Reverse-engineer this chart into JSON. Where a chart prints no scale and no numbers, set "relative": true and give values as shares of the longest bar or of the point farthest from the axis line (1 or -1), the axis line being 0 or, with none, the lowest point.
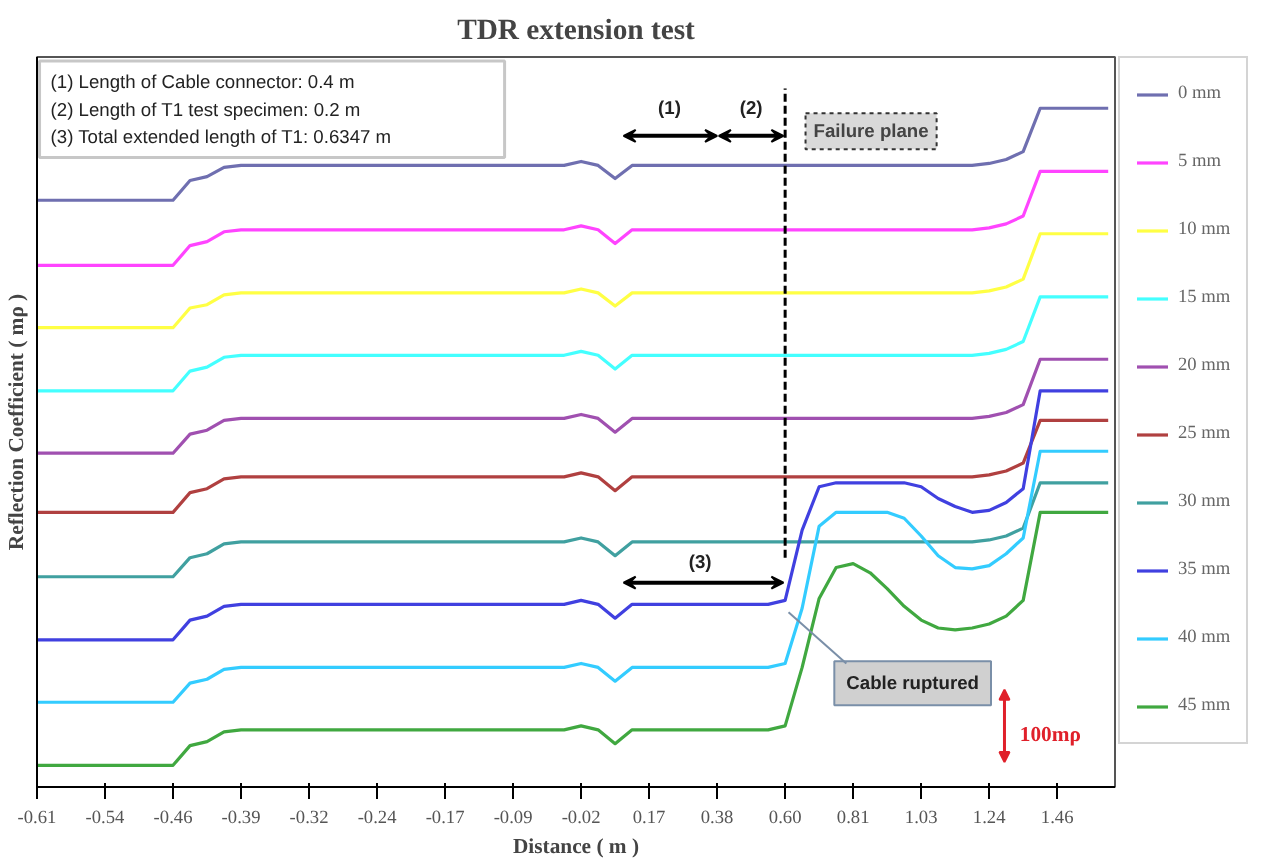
{
  "chart_data": {
    "type": "line",
    "title": "TDR extension test",
    "xlabel": "Distance ( m )",
    "ylabel": "Reflection Coefficient ( mρ )",
    "relative": true,
    "legend": "right",
    "categories": [
      "-0.61",
      null,
      null,
      null,
      "-0.54",
      null,
      null,
      null,
      "-0.46",
      null,
      null,
      null,
      "-0.39",
      null,
      null,
      null,
      "-0.32",
      null,
      null,
      null,
      "-0.24",
      null,
      null,
      null,
      "-0.17",
      null,
      null,
      null,
      "-0.09",
      null,
      null,
      null,
      "-0.02",
      null,
      null,
      null,
      "0.17",
      null,
      null,
      null,
      "0.38",
      null,
      null,
      null,
      "0.60",
      null,
      null,
      null,
      "0.81",
      null,
      null,
      null,
      "1.03",
      null,
      null,
      null,
      "1.24",
      null,
      null,
      null,
      "1.46",
      null,
      null,
      null
    ],
    "series": [
      {
        "name": "0 mm",
        "color": "#6f6fb0",
        "values": [
          0.86,
          0.86,
          0.86,
          0.86,
          0.86,
          0.86,
          0.86,
          0.86,
          0.86,
          0.89,
          0.896,
          0.91,
          0.913,
          0.913,
          0.913,
          0.913,
          0.913,
          0.913,
          0.913,
          0.913,
          0.913,
          0.913,
          0.913,
          0.913,
          0.913,
          0.913,
          0.913,
          0.913,
          0.913,
          0.913,
          0.913,
          0.913,
          0.919,
          0.913,
          0.893,
          0.913,
          0.913,
          0.913,
          0.913,
          0.913,
          0.913,
          0.913,
          0.913,
          0.913,
          0.913,
          0.913,
          0.913,
          0.913,
          0.913,
          0.913,
          0.913,
          0.913,
          0.913,
          0.913,
          0.913,
          0.913,
          0.916,
          0.922,
          0.934,
          1,
          1,
          1,
          1,
          1
        ]
      },
      {
        "name": "5 mm",
        "color": "#ff44ff",
        "values": [
          0.761,
          0.761,
          0.761,
          0.761,
          0.761,
          0.761,
          0.761,
          0.761,
          0.761,
          0.791,
          0.797,
          0.812,
          0.815,
          0.815,
          0.815,
          0.815,
          0.815,
          0.815,
          0.815,
          0.815,
          0.815,
          0.815,
          0.815,
          0.815,
          0.815,
          0.815,
          0.815,
          0.815,
          0.815,
          0.815,
          0.815,
          0.815,
          0.821,
          0.815,
          0.794,
          0.815,
          0.815,
          0.815,
          0.815,
          0.815,
          0.815,
          0.815,
          0.815,
          0.815,
          0.815,
          0.815,
          0.815,
          0.815,
          0.815,
          0.815,
          0.815,
          0.815,
          0.815,
          0.815,
          0.815,
          0.815,
          0.818,
          0.824,
          0.836,
          0.904,
          0.904,
          0.904,
          0.904,
          0.904
        ]
      },
      {
        "name": "10 mm",
        "color": "#ffff44",
        "values": [
          0.666,
          0.666,
          0.666,
          0.666,
          0.666,
          0.666,
          0.666,
          0.666,
          0.666,
          0.696,
          0.701,
          0.716,
          0.719,
          0.719,
          0.719,
          0.719,
          0.719,
          0.719,
          0.719,
          0.719,
          0.719,
          0.719,
          0.719,
          0.719,
          0.719,
          0.719,
          0.719,
          0.719,
          0.719,
          0.719,
          0.719,
          0.719,
          0.725,
          0.719,
          0.699,
          0.719,
          0.719,
          0.719,
          0.719,
          0.719,
          0.719,
          0.719,
          0.719,
          0.719,
          0.719,
          0.719,
          0.719,
          0.719,
          0.719,
          0.719,
          0.719,
          0.719,
          0.719,
          0.719,
          0.719,
          0.719,
          0.722,
          0.728,
          0.74,
          0.809,
          0.809,
          0.809,
          0.809,
          0.809
        ]
      },
      {
        "name": "15 mm",
        "color": "#44ffff",
        "values": [
          0.57,
          0.57,
          0.57,
          0.57,
          0.57,
          0.57,
          0.57,
          0.57,
          0.57,
          0.6,
          0.606,
          0.621,
          0.624,
          0.624,
          0.624,
          0.624,
          0.624,
          0.624,
          0.624,
          0.624,
          0.624,
          0.624,
          0.624,
          0.624,
          0.624,
          0.624,
          0.624,
          0.624,
          0.624,
          0.624,
          0.624,
          0.624,
          0.63,
          0.624,
          0.603,
          0.624,
          0.624,
          0.624,
          0.624,
          0.624,
          0.624,
          0.624,
          0.624,
          0.624,
          0.624,
          0.624,
          0.624,
          0.624,
          0.624,
          0.624,
          0.624,
          0.624,
          0.624,
          0.624,
          0.624,
          0.624,
          0.627,
          0.633,
          0.645,
          0.713,
          0.713,
          0.713,
          0.713,
          0.713
        ]
      },
      {
        "name": "20 mm",
        "color": "#a050b0",
        "values": [
          0.475,
          0.475,
          0.475,
          0.475,
          0.475,
          0.475,
          0.475,
          0.475,
          0.475,
          0.504,
          0.51,
          0.525,
          0.528,
          0.528,
          0.528,
          0.528,
          0.528,
          0.528,
          0.528,
          0.528,
          0.528,
          0.528,
          0.528,
          0.528,
          0.528,
          0.528,
          0.528,
          0.528,
          0.528,
          0.528,
          0.528,
          0.528,
          0.534,
          0.528,
          0.507,
          0.528,
          0.528,
          0.528,
          0.528,
          0.528,
          0.528,
          0.528,
          0.528,
          0.528,
          0.528,
          0.528,
          0.528,
          0.528,
          0.528,
          0.528,
          0.528,
          0.528,
          0.528,
          0.528,
          0.528,
          0.528,
          0.531,
          0.537,
          0.549,
          0.618,
          0.618,
          0.618,
          0.618,
          0.618
        ]
      },
      {
        "name": "25 mm",
        "color": "#b04040",
        "values": [
          0.385,
          0.385,
          0.385,
          0.385,
          0.385,
          0.385,
          0.385,
          0.385,
          0.385,
          0.415,
          0.421,
          0.436,
          0.439,
          0.439,
          0.439,
          0.439,
          0.439,
          0.439,
          0.439,
          0.439,
          0.439,
          0.439,
          0.439,
          0.439,
          0.439,
          0.439,
          0.439,
          0.439,
          0.439,
          0.439,
          0.439,
          0.439,
          0.445,
          0.439,
          0.418,
          0.439,
          0.439,
          0.439,
          0.439,
          0.439,
          0.439,
          0.439,
          0.439,
          0.439,
          0.439,
          0.439,
          0.439,
          0.439,
          0.439,
          0.439,
          0.439,
          0.439,
          0.439,
          0.439,
          0.439,
          0.439,
          0.442,
          0.448,
          0.46,
          0.525,
          0.525,
          0.525,
          0.525,
          0.525
        ]
      },
      {
        "name": "30 mm",
        "color": "#40a0a0",
        "values": [
          0.287,
          0.287,
          0.287,
          0.287,
          0.287,
          0.287,
          0.287,
          0.287,
          0.287,
          0.316,
          0.322,
          0.337,
          0.34,
          0.34,
          0.34,
          0.34,
          0.34,
          0.34,
          0.34,
          0.34,
          0.34,
          0.34,
          0.34,
          0.34,
          0.34,
          0.34,
          0.34,
          0.34,
          0.34,
          0.34,
          0.34,
          0.34,
          0.346,
          0.34,
          0.319,
          0.34,
          0.34,
          0.34,
          0.34,
          0.34,
          0.34,
          0.34,
          0.34,
          0.34,
          0.34,
          0.34,
          0.34,
          0.34,
          0.34,
          0.34,
          0.34,
          0.34,
          0.34,
          0.34,
          0.34,
          0.34,
          0.343,
          0.349,
          0.361,
          0.43,
          0.43,
          0.43,
          0.43,
          0.43
        ]
      },
      {
        "name": "35 mm",
        "color": "#4040e0",
        "values": [
          0.191,
          0.191,
          0.191,
          0.191,
          0.191,
          0.191,
          0.191,
          0.191,
          0.191,
          0.221,
          0.227,
          0.242,
          0.245,
          0.245,
          0.245,
          0.245,
          0.245,
          0.245,
          0.245,
          0.245,
          0.245,
          0.245,
          0.245,
          0.245,
          0.245,
          0.245,
          0.245,
          0.245,
          0.245,
          0.245,
          0.245,
          0.245,
          0.251,
          0.245,
          0.224,
          0.245,
          0.245,
          0.245,
          0.245,
          0.245,
          0.245,
          0.245,
          0.245,
          0.245,
          0.251,
          0.358,
          0.424,
          0.43,
          0.43,
          0.43,
          0.43,
          0.43,
          0.424,
          0.406,
          0.394,
          0.385,
          0.388,
          0.4,
          0.421,
          0.57,
          0.57,
          0.57,
          0.57,
          0.57
        ]
      },
      {
        "name": "40 mm",
        "color": "#33ccff",
        "values": [
          0.096,
          0.096,
          0.096,
          0.096,
          0.096,
          0.096,
          0.096,
          0.096,
          0.096,
          0.125,
          0.131,
          0.146,
          0.149,
          0.149,
          0.149,
          0.149,
          0.149,
          0.149,
          0.149,
          0.149,
          0.149,
          0.149,
          0.149,
          0.149,
          0.149,
          0.149,
          0.149,
          0.149,
          0.149,
          0.149,
          0.149,
          0.149,
          0.155,
          0.149,
          0.128,
          0.149,
          0.149,
          0.149,
          0.149,
          0.149,
          0.149,
          0.149,
          0.149,
          0.149,
          0.155,
          0.239,
          0.364,
          0.385,
          0.385,
          0.385,
          0.385,
          0.376,
          0.349,
          0.319,
          0.301,
          0.299,
          0.304,
          0.322,
          0.346,
          0.478,
          0.478,
          0.478,
          0.478,
          0.478
        ]
      },
      {
        "name": "45 mm",
        "color": "#40a840",
        "values": [
          0,
          0,
          0,
          0,
          0,
          0,
          0,
          0,
          0,
          0.03,
          0.036,
          0.051,
          0.054,
          0.054,
          0.054,
          0.054,
          0.054,
          0.054,
          0.054,
          0.054,
          0.054,
          0.054,
          0.054,
          0.054,
          0.054,
          0.054,
          0.054,
          0.054,
          0.054,
          0.054,
          0.054,
          0.054,
          0.06,
          0.054,
          0.033,
          0.054,
          0.054,
          0.054,
          0.054,
          0.054,
          0.054,
          0.054,
          0.054,
          0.054,
          0.06,
          0.149,
          0.254,
          0.301,
          0.307,
          0.293,
          0.269,
          0.242,
          0.221,
          0.209,
          0.206,
          0.209,
          0.215,
          0.227,
          0.251,
          0.385,
          0.385,
          0.385,
          0.385,
          0.385
        ]
      }
    ],
    "ref_lines": [
      {
        "axis": "x",
        "value": "0.60",
        "label": "Failure plane",
        "color": "#000000",
        "line_style": "dashed"
      }
    ],
    "annotations": [
      "(1) Length of Cable connector: 0.4 m",
      "(2) Length of T1 test specimen: 0.2 m",
      "(3) Total extended length of T1: 0.6347 m",
      "(1)",
      "(2)",
      "(3)",
      "Cable ruptured",
      "100mρ"
    ]
  }
}
